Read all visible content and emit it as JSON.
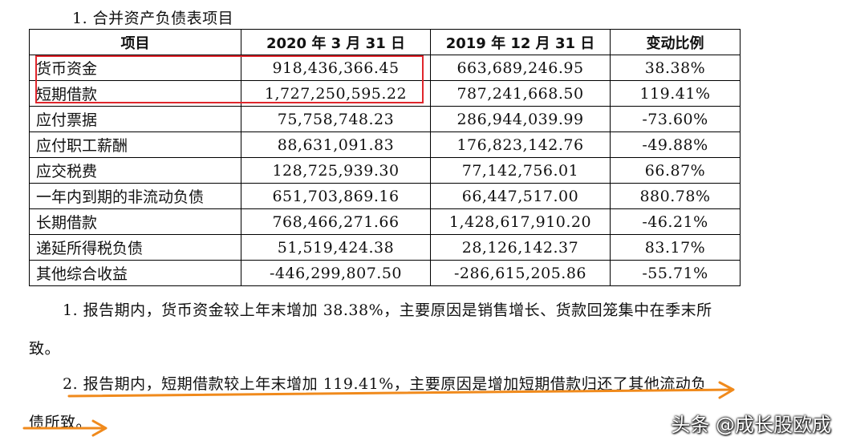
{
  "heading": "1. 合并资产负债表项目",
  "table": {
    "headers": [
      "项目",
      "2020 年 3 月 31 日",
      "2019 年 12 月 31 日",
      "变动比例"
    ],
    "rows": [
      {
        "item": "货币资金",
        "v2020": "918,436,366.45",
        "v2019": "663,689,246.95",
        "change": "38.38%"
      },
      {
        "item": "短期借款",
        "v2020": "1,727,250,595.22",
        "v2019": "787,241,668.50",
        "change": "119.41%"
      },
      {
        "item": "应付票据",
        "v2020": "75,758,748.23",
        "v2019": "286,944,039.99",
        "change": "-73.60%"
      },
      {
        "item": "应付职工薪酬",
        "v2020": "88,631,091.83",
        "v2019": "176,823,142.76",
        "change": "-49.88%"
      },
      {
        "item": "应交税费",
        "v2020": "128,725,939.30",
        "v2019": "77,142,756.01",
        "change": "66.87%"
      },
      {
        "item": "一年内到期的非流动负债",
        "v2020": "651,703,869.16",
        "v2019": "66,447,517.00",
        "change": "880.78%"
      },
      {
        "item": "长期借款",
        "v2020": "768,466,271.66",
        "v2019": "1,428,617,910.20",
        "change": "-46.21%"
      },
      {
        "item": "递延所得税负债",
        "v2020": "51,519,424.38",
        "v2019": "28,126,142.37",
        "change": "83.17%"
      },
      {
        "item": "其他综合收益",
        "v2020": "-446,299,807.50",
        "v2019": "-286,615,205.86",
        "change": "-55.71%"
      }
    ]
  },
  "notes": {
    "p1_line1": "1. 报告期内，货币资金较上年末增加 38.38%，主要原因是销售增长、货款回笼集中在季末所",
    "p1_line2": "致。",
    "p2_line1": "2. 报告期内，短期借款较上年末增加 119.41%，主要原因是增加短期借款归还了其他流动负",
    "p2_line2": "债所致。"
  },
  "watermark": "头条 @成长股欧成",
  "colors": {
    "highlight_box": "#e0262c",
    "arrow": "#f08a1c"
  }
}
